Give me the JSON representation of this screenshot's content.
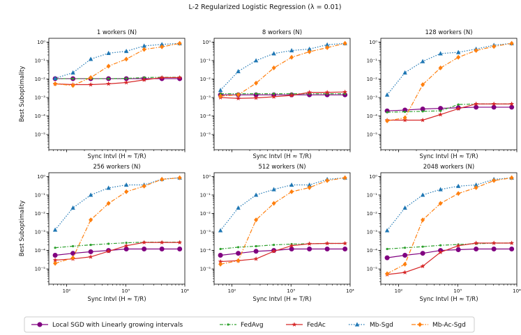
{
  "figure": {
    "title": "L-2 Regularized Logistic Regression (λ = 0.01)",
    "xlabel": "Sync Intvl (H ≈ T/R)",
    "ylabel": "Best Suboptimality"
  },
  "legend": {
    "labels": [
      "Local SGD with Linearly growing intervals",
      "FedAvg",
      "FedAc",
      "Mb-Sgd",
      "Mb-Ac-Sgd"
    ]
  },
  "chart_data": {
    "type": "line",
    "xscale": "log",
    "yscale": "log",
    "xlim": [
      50,
      10000
    ],
    "ylim": [
      1.5e-06,
      1.6
    ],
    "x": [
      64,
      128,
      256,
      512,
      1024,
      2048,
      4096,
      8192
    ],
    "xticks": [
      {
        "v": 100,
        "label": "10²"
      },
      {
        "v": 1000,
        "label": "10³"
      },
      {
        "v": 10000,
        "label": "10⁴"
      }
    ],
    "yticks": [
      {
        "v": 1e-05,
        "label": "10⁻⁵"
      },
      {
        "v": 0.0001,
        "label": "10⁻⁴"
      },
      {
        "v": 0.001,
        "label": "10⁻³"
      },
      {
        "v": 0.01,
        "label": "10⁻²"
      },
      {
        "v": 0.1,
        "label": "10⁻¹"
      },
      {
        "v": 1,
        "label": "10⁰"
      }
    ],
    "series_styles": [
      {
        "name": "Local SGD with Linearly growing intervals",
        "color": "#800080",
        "dash": "",
        "marker": "circle"
      },
      {
        "name": "FedAvg",
        "color": "#2ca02c",
        "dash": "5,2,1.5,2",
        "marker": "dot"
      },
      {
        "name": "FedAc",
        "color": "#d62728",
        "dash": "",
        "marker": "star"
      },
      {
        "name": "Mb-Sgd",
        "color": "#1f77b4",
        "dash": "1.5,2",
        "marker": "triangle"
      },
      {
        "name": "Mb-Ac-Sgd",
        "color": "#ff7f0e",
        "dash": "6,2,1.5,2",
        "marker": "diamond"
      }
    ],
    "panels": [
      {
        "title": "1 workers (N)",
        "series": [
          {
            "name": "Local SGD with Linearly growing intervals",
            "values": [
              0.0105,
              0.0105,
              0.0105,
              0.0105,
              0.0105,
              0.0105,
              0.0105,
              0.0105
            ]
          },
          {
            "name": "FedAvg",
            "values": [
              0.0105,
              0.0105,
              0.0105,
              0.0105,
              0.0108,
              0.012,
              0.0125,
              0.0125
            ]
          },
          {
            "name": "FedAc",
            "values": [
              0.0055,
              0.005,
              0.005,
              0.0055,
              0.0065,
              0.009,
              0.012,
              0.012
            ]
          },
          {
            "name": "Mb-Sgd",
            "values": [
              0.011,
              0.022,
              0.12,
              0.25,
              0.32,
              0.62,
              0.75,
              0.85
            ]
          },
          {
            "name": "Mb-Ac-Sgd",
            "values": [
              0.0055,
              0.0045,
              0.012,
              0.05,
              0.12,
              0.4,
              0.55,
              0.85
            ]
          }
        ]
      },
      {
        "title": "8 workers (N)",
        "series": [
          {
            "name": "Local SGD with Linearly growing intervals",
            "values": [
              0.0014,
              0.0014,
              0.0014,
              0.0014,
              0.0014,
              0.0014,
              0.0014,
              0.0014
            ]
          },
          {
            "name": "FedAvg",
            "values": [
              0.0016,
              0.0016,
              0.0016,
              0.0016,
              0.0016,
              0.0016,
              0.0016,
              0.0016
            ]
          },
          {
            "name": "FedAc",
            "values": [
              0.001,
              0.0009,
              0.00095,
              0.0011,
              0.0013,
              0.0019,
              0.0019,
              0.002
            ]
          },
          {
            "name": "Mb-Sgd",
            "values": [
              0.0025,
              0.026,
              0.1,
              0.24,
              0.35,
              0.42,
              0.72,
              0.85
            ]
          },
          {
            "name": "Mb-Ac-Sgd",
            "values": [
              0.0012,
              0.0014,
              0.006,
              0.04,
              0.15,
              0.3,
              0.5,
              0.85
            ]
          }
        ]
      },
      {
        "title": "128 workers (N)",
        "series": [
          {
            "name": "Local SGD with Linearly growing intervals",
            "values": [
              0.00019,
              0.00021,
              0.00024,
              0.00026,
              0.00028,
              0.0003,
              0.0003,
              0.0003
            ]
          },
          {
            "name": "FedAvg",
            "values": [
              0.00016,
              0.00017,
              0.00018,
              0.00019,
              0.00042,
              0.00045,
              0.00045,
              0.00045
            ]
          },
          {
            "name": "FedAc",
            "values": [
              6e-05,
              6e-05,
              6e-05,
              0.00012,
              0.00025,
              0.00045,
              0.00045,
              0.00045
            ]
          },
          {
            "name": "Mb-Sgd",
            "values": [
              0.0014,
              0.022,
              0.09,
              0.24,
              0.28,
              0.42,
              0.68,
              0.85
            ]
          },
          {
            "name": "Mb-Ac-Sgd",
            "values": [
              5.5e-05,
              8e-05,
              0.005,
              0.04,
              0.15,
              0.35,
              0.58,
              0.85
            ]
          }
        ]
      },
      {
        "title": "256 workers (N)",
        "series": [
          {
            "name": "Local SGD with Linearly growing intervals",
            "values": [
              5.5e-05,
              7e-05,
              8.5e-05,
              0.0001,
              0.00012,
              0.00012,
              0.00012,
              0.00012
            ]
          },
          {
            "name": "FedAvg",
            "values": [
              0.00014,
              0.00017,
              0.0002,
              0.00023,
              0.00026,
              0.00028,
              0.00028,
              0.00028
            ]
          },
          {
            "name": "FedAc",
            "values": [
              3e-05,
              3.5e-05,
              4.5e-05,
              9e-05,
              0.00018,
              0.00027,
              0.00027,
              0.00027
            ]
          },
          {
            "name": "Mb-Sgd",
            "values": [
              0.0013,
              0.02,
              0.1,
              0.24,
              0.35,
              0.35,
              0.72,
              0.85
            ]
          },
          {
            "name": "Mb-Ac-Sgd",
            "values": [
              2e-05,
              4e-05,
              0.0045,
              0.035,
              0.15,
              0.3,
              0.7,
              0.85
            ]
          }
        ]
      },
      {
        "title": "512 workers (N)",
        "series": [
          {
            "name": "Local SGD with Linearly growing intervals",
            "values": [
              5.5e-05,
              7e-05,
              9e-05,
              0.0001,
              0.00012,
              0.00012,
              0.00012,
              0.00012
            ]
          },
          {
            "name": "FedAvg",
            "values": [
              0.00012,
              0.00015,
              0.00017,
              0.0002,
              0.00022,
              0.00023,
              0.00024,
              0.00024
            ]
          },
          {
            "name": "FedAc",
            "values": [
              2.5e-05,
              2.8e-05,
              3.5e-05,
              9e-05,
              0.00018,
              0.00023,
              0.00024,
              0.00024
            ]
          },
          {
            "name": "Mb-Sgd",
            "values": [
              0.0012,
              0.02,
              0.1,
              0.2,
              0.35,
              0.35,
              0.7,
              0.85
            ]
          },
          {
            "name": "Mb-Ac-Sgd",
            "values": [
              1.8e-05,
              2.8e-05,
              0.0045,
              0.035,
              0.15,
              0.25,
              0.6,
              0.85
            ]
          }
        ]
      },
      {
        "title": "2048 workers (N)",
        "series": [
          {
            "name": "Local SGD with Linearly growing intervals",
            "values": [
              4e-05,
              5.5e-05,
              7e-05,
              0.0001,
              0.00011,
              0.00012,
              0.00012,
              0.00012
            ]
          },
          {
            "name": "FedAvg",
            "values": [
              0.00012,
              0.00014,
              0.00016,
              0.00019,
              0.00021,
              0.00023,
              0.00025,
              0.00025
            ]
          },
          {
            "name": "FedAc",
            "values": [
              5e-06,
              6.5e-06,
              1.4e-05,
              8e-05,
              0.00018,
              0.00025,
              0.00025,
              0.00025
            ]
          },
          {
            "name": "Mb-Sgd",
            "values": [
              0.0012,
              0.02,
              0.1,
              0.2,
              0.3,
              0.35,
              0.7,
              0.85
            ]
          },
          {
            "name": "Mb-Ac-Sgd",
            "values": [
              5.5e-06,
              1.8e-05,
              0.0045,
              0.035,
              0.12,
              0.25,
              0.6,
              0.85
            ]
          }
        ]
      }
    ]
  }
}
